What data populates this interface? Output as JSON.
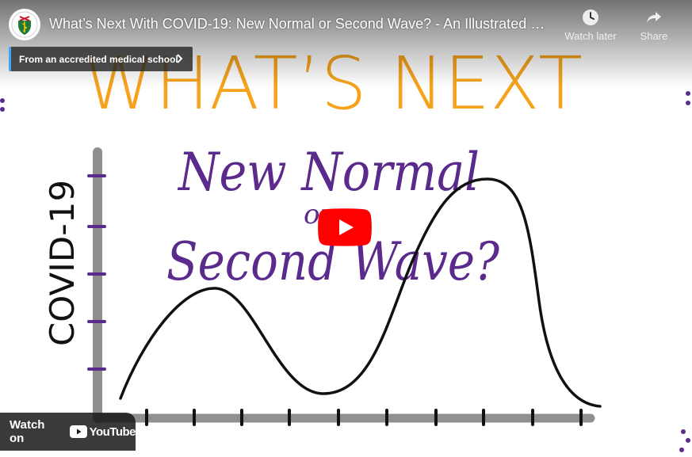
{
  "video": {
    "title": "What’s Next With COVID-19: New Normal or Second Wave? - An Illustrated Su…",
    "channel_avatar_icon": "medical-school-shield-icon"
  },
  "top_actions": {
    "watch_later_label": "Watch later",
    "share_label": "Share"
  },
  "banner": {
    "text": "From an accredited medical school"
  },
  "thumbnail": {
    "heading": "WHAT’S NEXT",
    "line1": "New Normal",
    "line2": "or",
    "line3": "Second Wave?",
    "axis_label": "COVID-19"
  },
  "bottom": {
    "watch_on_label": "Watch on",
    "brand_label": "YouTube"
  },
  "colors": {
    "youtube_red": "#ff0000",
    "heading_orange": "#f6a31b",
    "handwriting_purple": "#5a2a8c",
    "banner_accent": "#3ea6ff"
  }
}
